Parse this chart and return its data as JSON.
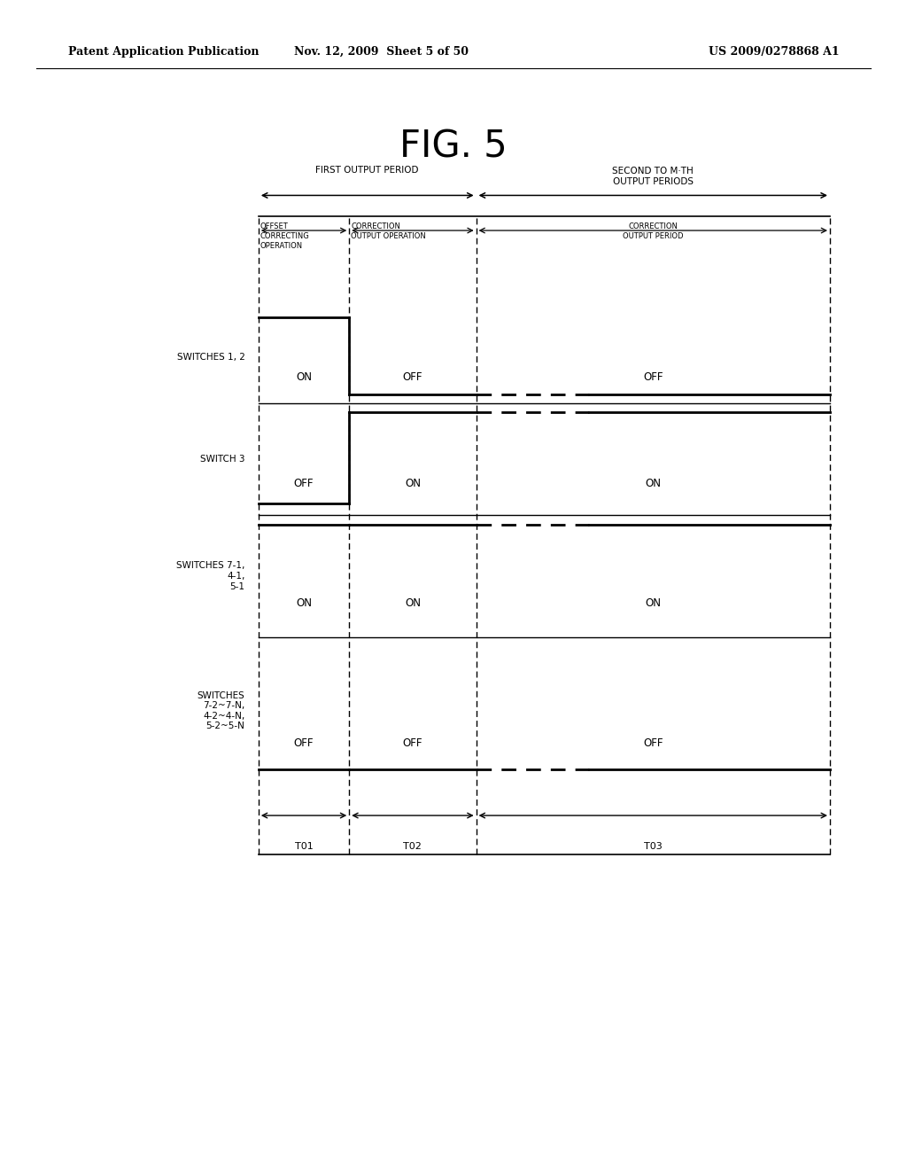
{
  "header_left": "Patent Application Publication",
  "header_middle": "Nov. 12, 2009  Sheet 5 of 50",
  "header_right": "US 2009/0278868 A1",
  "fig_title": "FIG. 5",
  "period_label_first": "FIRST OUTPUT PERIOD",
  "period_label_second": "SECOND TO M·TH\nOUTPUT PERIODS",
  "sub_label_offset": "OFFSET\nCORRECTING\nOPERATION",
  "sub_label_correction": "CORRECTION\nOUTPUT OPERATION",
  "sub_label_period": "CORRECTION\nOUTPUT PERIOD",
  "row_labels": [
    "SWITCHES 1, 2",
    "SWITCH 3",
    "SWITCHES 7-1,\n4-1,\n5-1",
    "SWITCHES\n7-2~7-N,\n4-2~4-N,\n5-2~5-N"
  ],
  "row_values": [
    [
      "ON",
      "OFF",
      "OFF"
    ],
    [
      "OFF",
      "ON",
      "ON"
    ],
    [
      "ON",
      "ON",
      "ON"
    ],
    [
      "OFF",
      "OFF",
      "OFF"
    ]
  ],
  "signals": [
    [
      "ON",
      "OFF",
      "OFF"
    ],
    [
      "OFF",
      "ON",
      "ON"
    ],
    [
      "ON",
      "ON",
      "ON"
    ],
    [
      "OFF",
      "OFF",
      "OFF"
    ]
  ],
  "time_labels": [
    "T01",
    "T02",
    "T03"
  ],
  "background_color": "#ffffff",
  "line_color": "#000000"
}
